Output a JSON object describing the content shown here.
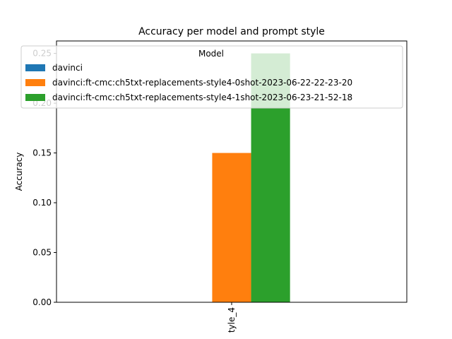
{
  "chart_data": {
    "type": "bar",
    "title": "Accuracy per model and prompt style",
    "xlabel": "",
    "ylabel": "Accuracy",
    "categories": [
      "tyle_4"
    ],
    "ylim": [
      0,
      0.2625
    ],
    "yticks": [
      "0.00",
      "0.05",
      "0.10",
      "0.15",
      "0.20",
      "0.25"
    ],
    "grid": false,
    "legend": {
      "title": "Model",
      "placement": "top-left"
    },
    "series": [
      {
        "name": "davinci",
        "values": [
          0.0
        ],
        "color": "#1f77b4"
      },
      {
        "name": "davinci:ft-cmc:ch5txt-replacements-style4-0shot-2023-06-22-22-23-20",
        "values": [
          0.15
        ],
        "color": "#ff7f0e"
      },
      {
        "name": "davinci:ft-cmc:ch5txt-replacements-style4-1shot-2023-06-23-21-52-18",
        "values": [
          0.25
        ],
        "color": "#2ca02c"
      }
    ]
  }
}
